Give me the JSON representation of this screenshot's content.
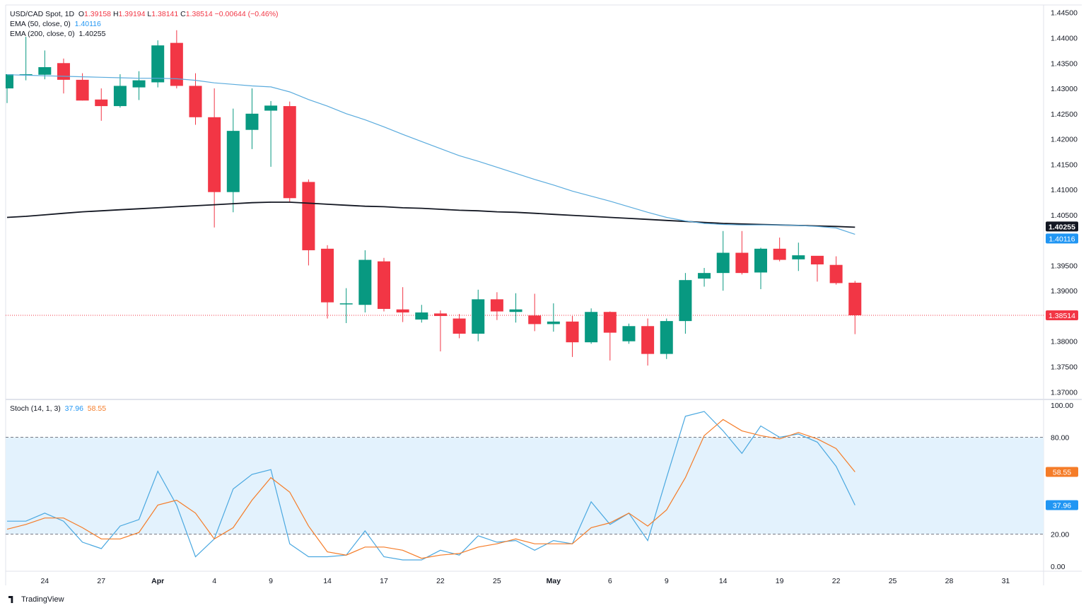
{
  "header": {
    "symbol": "USD/CAD Spot, 1D",
    "open_label": "O",
    "open": "1.39158",
    "high_label": "H",
    "high": "1.39194",
    "low_label": "L",
    "low": "1.38141",
    "close_label": "C",
    "close": "1.38514",
    "change": "−0.00644 (−0.46%)",
    "ema50_label": "EMA (50, close, 0)",
    "ema50_value": "1.40116",
    "ema200_label": "EMA (200, close, 0)",
    "ema200_value": "1.40255",
    "stoch_label": "Stoch (14, 1, 3)",
    "stoch_k_value": "37.96",
    "stoch_d_value": "58.55"
  },
  "colors": {
    "up": "#089981",
    "down": "#F23645",
    "ema50": "#5AABDD",
    "ema200": "#131722",
    "stoch_k": "#4AA8E0",
    "stoch_d": "#F57C28",
    "band": "#E3F2FD"
  },
  "chart_data": [
    {
      "type": "candlestick",
      "title": "USD/CAD Spot, 1D",
      "ylim": [
        1.3685,
        1.4465
      ],
      "y_ticks": [
        "1.37000",
        "1.37500",
        "1.38000",
        "1.38500",
        "1.39000",
        "1.39500",
        "1.40000",
        "1.40500",
        "1.41000",
        "1.41500",
        "1.42000",
        "1.42500",
        "1.43000",
        "1.43500",
        "1.44000",
        "1.44500"
      ],
      "y_tick_values": [
        1.37,
        1.375,
        1.38,
        1.385,
        1.39,
        1.395,
        1.4,
        1.405,
        1.41,
        1.415,
        1.42,
        1.425,
        1.43,
        1.435,
        1.44,
        1.445
      ],
      "x_ticks": [
        "24",
        "27",
        "Apr",
        "4",
        "9",
        "14",
        "17",
        "22",
        "25",
        "May",
        "6",
        "9",
        "14",
        "19",
        "22",
        "25",
        "28",
        "31"
      ],
      "x_tick_index": [
        2,
        5,
        8,
        11,
        14,
        17,
        20,
        23,
        26,
        29,
        32,
        35,
        38,
        41,
        44,
        47,
        50,
        53
      ],
      "candles": [
        {
          "o": 1.43,
          "h": 1.4327,
          "l": 1.4271,
          "c": 1.4328
        },
        {
          "o": 1.4328,
          "h": 1.4402,
          "l": 1.4316,
          "c": 1.4328
        },
        {
          "o": 1.4327,
          "h": 1.4375,
          "l": 1.4318,
          "c": 1.4342
        },
        {
          "o": 1.435,
          "h": 1.4359,
          "l": 1.429,
          "c": 1.4317
        },
        {
          "o": 1.4317,
          "h": 1.433,
          "l": 1.4276,
          "c": 1.4276
        },
        {
          "o": 1.4278,
          "h": 1.43,
          "l": 1.4236,
          "c": 1.4265
        },
        {
          "o": 1.4265,
          "h": 1.4328,
          "l": 1.4262,
          "c": 1.4305
        },
        {
          "o": 1.4302,
          "h": 1.4334,
          "l": 1.4277,
          "c": 1.4316
        },
        {
          "o": 1.4312,
          "h": 1.4395,
          "l": 1.4302,
          "c": 1.4385
        },
        {
          "o": 1.439,
          "h": 1.4415,
          "l": 1.43,
          "c": 1.4305
        },
        {
          "o": 1.4305,
          "h": 1.433,
          "l": 1.4228,
          "c": 1.4243
        },
        {
          "o": 1.4243,
          "h": 1.43,
          "l": 1.4025,
          "c": 1.4095
        },
        {
          "o": 1.4095,
          "h": 1.426,
          "l": 1.4055,
          "c": 1.4216
        },
        {
          "o": 1.4218,
          "h": 1.43,
          "l": 1.418,
          "c": 1.425
        },
        {
          "o": 1.4256,
          "h": 1.4275,
          "l": 1.4145,
          "c": 1.4266
        },
        {
          "o": 1.4265,
          "h": 1.4274,
          "l": 1.4076,
          "c": 1.4083
        },
        {
          "o": 1.4115,
          "h": 1.412,
          "l": 1.395,
          "c": 1.398
        },
        {
          "o": 1.3983,
          "h": 1.399,
          "l": 1.3845,
          "c": 1.3877
        },
        {
          "o": 1.3875,
          "h": 1.3905,
          "l": 1.3836,
          "c": 1.3875
        },
        {
          "o": 1.3872,
          "h": 1.398,
          "l": 1.3857,
          "c": 1.3961
        },
        {
          "o": 1.3958,
          "h": 1.3965,
          "l": 1.3859,
          "c": 1.3864
        },
        {
          "o": 1.3863,
          "h": 1.3907,
          "l": 1.3838,
          "c": 1.3857
        },
        {
          "o": 1.3843,
          "h": 1.3872,
          "l": 1.3837,
          "c": 1.3857
        },
        {
          "o": 1.3855,
          "h": 1.3861,
          "l": 1.378,
          "c": 1.385
        },
        {
          "o": 1.3845,
          "h": 1.3854,
          "l": 1.3806,
          "c": 1.3815
        },
        {
          "o": 1.3815,
          "h": 1.3902,
          "l": 1.38,
          "c": 1.3883
        },
        {
          "o": 1.3883,
          "h": 1.3897,
          "l": 1.3842,
          "c": 1.3859
        },
        {
          "o": 1.3858,
          "h": 1.3895,
          "l": 1.3837,
          "c": 1.3863
        },
        {
          "o": 1.3851,
          "h": 1.3894,
          "l": 1.382,
          "c": 1.3834
        },
        {
          "o": 1.3834,
          "h": 1.3875,
          "l": 1.3819,
          "c": 1.3839
        },
        {
          "o": 1.3839,
          "h": 1.385,
          "l": 1.3769,
          "c": 1.3798
        },
        {
          "o": 1.3798,
          "h": 1.3865,
          "l": 1.3795,
          "c": 1.3858
        },
        {
          "o": 1.3858,
          "h": 1.3859,
          "l": 1.3762,
          "c": 1.3817
        },
        {
          "o": 1.38,
          "h": 1.3835,
          "l": 1.3795,
          "c": 1.383
        },
        {
          "o": 1.383,
          "h": 1.3845,
          "l": 1.3752,
          "c": 1.3775
        },
        {
          "o": 1.3775,
          "h": 1.3845,
          "l": 1.3765,
          "c": 1.384
        },
        {
          "o": 1.384,
          "h": 1.3935,
          "l": 1.3815,
          "c": 1.3921
        },
        {
          "o": 1.3924,
          "h": 1.3945,
          "l": 1.3908,
          "c": 1.3935
        },
        {
          "o": 1.3935,
          "h": 1.4018,
          "l": 1.39,
          "c": 1.3975
        },
        {
          "o": 1.3975,
          "h": 1.4018,
          "l": 1.3932,
          "c": 1.3935
        },
        {
          "o": 1.3936,
          "h": 1.3985,
          "l": 1.3903,
          "c": 1.3983
        },
        {
          "o": 1.3983,
          "h": 1.4005,
          "l": 1.3958,
          "c": 1.3961
        },
        {
          "o": 1.3962,
          "h": 1.3995,
          "l": 1.3939,
          "c": 1.397
        },
        {
          "o": 1.3969,
          "h": 1.3968,
          "l": 1.3918,
          "c": 1.3952
        },
        {
          "o": 1.3951,
          "h": 1.3968,
          "l": 1.3912,
          "c": 1.3915
        },
        {
          "o": 1.39158,
          "h": 1.39194,
          "l": 1.38141,
          "c": 1.38514
        }
      ],
      "ema50": [
        1.4327,
        1.4326,
        1.4325,
        1.4324,
        1.4323,
        1.4322,
        1.4321,
        1.432,
        1.432,
        1.4319,
        1.4316,
        1.4311,
        1.4308,
        1.4305,
        1.4303,
        1.4293,
        1.4278,
        1.4265,
        1.425,
        1.4238,
        1.4224,
        1.4209,
        1.4195,
        1.4181,
        1.4167,
        1.4156,
        1.4144,
        1.4132,
        1.412,
        1.4109,
        1.4097,
        1.4087,
        1.4077,
        1.4066,
        1.4055,
        1.4045,
        1.4038,
        1.4033,
        1.4031,
        1.403,
        1.403,
        1.403,
        1.4029,
        1.4027,
        1.4024,
        1.40116
      ],
      "ema200": [
        1.4045,
        1.4047,
        1.405,
        1.4053,
        1.4056,
        1.4058,
        1.406,
        1.4062,
        1.4064,
        1.4066,
        1.4068,
        1.407,
        1.4072,
        1.4074,
        1.4075,
        1.4075,
        1.4073,
        1.4071,
        1.4069,
        1.4067,
        1.4066,
        1.4064,
        1.4063,
        1.4061,
        1.4059,
        1.4058,
        1.4056,
        1.4055,
        1.4053,
        1.4051,
        1.4049,
        1.4047,
        1.4045,
        1.4043,
        1.4041,
        1.4039,
        1.4037,
        1.4035,
        1.4033,
        1.4032,
        1.4031,
        1.403,
        1.4029,
        1.4028,
        1.4027,
        1.40255
      ],
      "last_price_label": "1.38514",
      "ema50_label": "1.40116",
      "ema200_label": "1.40255"
    },
    {
      "type": "line",
      "title": "Stoch (14, 1, 3)",
      "ylim": [
        -3,
        103
      ],
      "y_ticks": [
        "0.00",
        "20.00",
        "80.00",
        "100.00"
      ],
      "y_tick_values": [
        0,
        20,
        80,
        100
      ],
      "band": [
        20,
        80
      ],
      "series": [
        {
          "name": "%K",
          "values": [
            28,
            28,
            33,
            28,
            15,
            11,
            25,
            29,
            59,
            38,
            6,
            17,
            48,
            57,
            60,
            14,
            6,
            6,
            7,
            22,
            6,
            4,
            4,
            10,
            7,
            19,
            15,
            16,
            10,
            16,
            14,
            40,
            26,
            33,
            16,
            55,
            93,
            96,
            84,
            70,
            87,
            80,
            82,
            77,
            62,
            37.96
          ]
        },
        {
          "name": "%D",
          "values": [
            23,
            26,
            30,
            30,
            24,
            17,
            17,
            21,
            38,
            41,
            33,
            17,
            24,
            41,
            55,
            46,
            25,
            9,
            7,
            12,
            12,
            10,
            5,
            7,
            8,
            12,
            14,
            17,
            14,
            14,
            14,
            24,
            27,
            33,
            25,
            35,
            55,
            81,
            91,
            84,
            81,
            79,
            83,
            79,
            73,
            58.55
          ]
        }
      ],
      "k_label": "37.96",
      "d_label": "58.55"
    }
  ],
  "footer": {
    "brand": "TradingView"
  }
}
